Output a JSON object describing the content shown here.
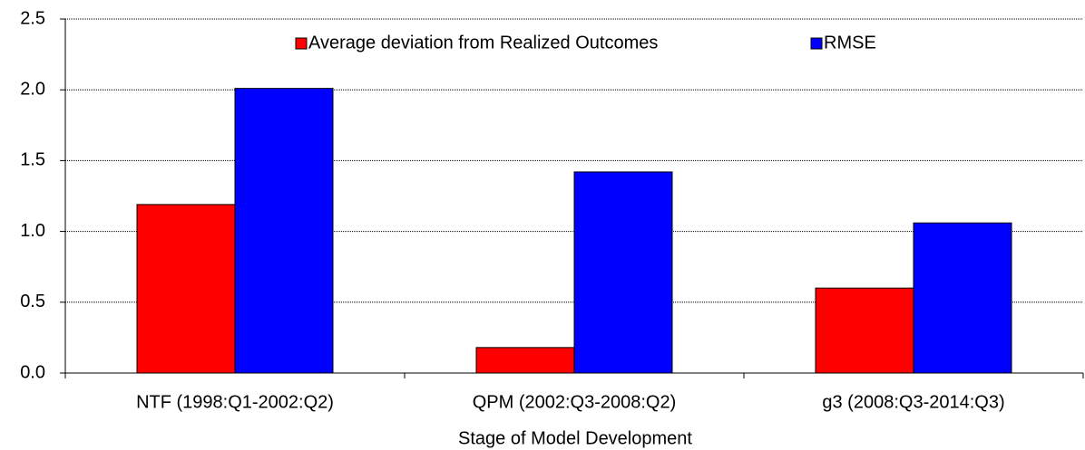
{
  "chart_data": {
    "type": "bar",
    "x_label": "Stage of Model Development",
    "categories": [
      "NTF (1998:Q1-2002:Q2)",
      "QPM (2002:Q3-2008:Q2)",
      "g3 (2008:Q3-2014:Q3)"
    ],
    "series": [
      {
        "name": "Average deviation from Realized Outcomes",
        "color": "#ff0000",
        "values": [
          1.19,
          0.18,
          0.6
        ]
      },
      {
        "name": "RMSE",
        "color": "#0000ff",
        "values": [
          2.01,
          1.42,
          1.06
        ]
      }
    ],
    "ylim": [
      0,
      2.5
    ],
    "yticks": [
      {
        "value": 0,
        "label": "0.0"
      },
      0.5,
      {
        "value": 1,
        "label": "1.0"
      },
      1.5,
      {
        "value": 2,
        "label": "2.0"
      },
      2.5
    ],
    "grid": true,
    "legend": "top"
  }
}
